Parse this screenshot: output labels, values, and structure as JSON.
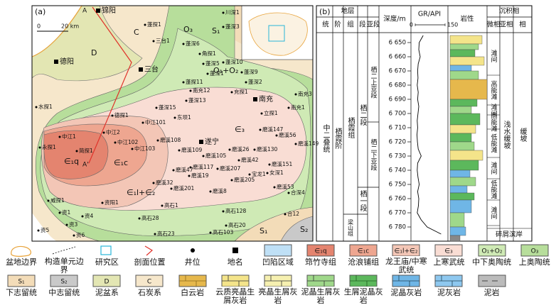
{
  "map": {
    "panel_label": "(a)",
    "scale_zero": "0",
    "scale_label": "20 km",
    "section_start": "A",
    "section_end": "A'",
    "places": [
      "锦阳",
      "德阳",
      "三台",
      "遂宁",
      "南充"
    ],
    "units": [
      "D",
      "C",
      "O₃",
      "S₁",
      "O₁+O₂",
      "∈₃",
      "∈₁c",
      "∈₁q",
      "∈₁l+∈₂",
      "S₁",
      "S₂"
    ],
    "wells": [
      "蓬探1",
      "川深1",
      "蓬深3",
      "三台1",
      "蓬深6",
      "角探1",
      "蓬深5",
      "蓬深10",
      "蓬深1",
      "蓬深9",
      "蓬深2",
      "蓬探11",
      "南充12",
      "充探1",
      "蓬深13",
      "蓬深15",
      "东坝1",
      "立探1",
      "南充3",
      "南充1",
      "德探1",
      "中江101",
      "中江2",
      "中江1",
      "中江102",
      "中江103",
      "磨溪108",
      "磨溪147",
      "磨溪56",
      "磨溪109",
      "磨溪26",
      "磨溪130",
      "磨溪149",
      "磨溪105",
      "水探1",
      "永探1",
      "简探1",
      "磨溪117",
      "磨溪42",
      "磨溪207",
      "磨溪47",
      "磨溪151",
      "宝龙1",
      "女深1",
      "磨溪19",
      "磨溪32",
      "磨溪201",
      "磨溪205",
      "磨溪8",
      "磨溪53",
      "资阳1",
      "威探1",
      "高石1",
      "高石28",
      "高石23",
      "高石103",
      "高石128",
      "高石20",
      "合12",
      "合深4",
      "资1",
      "资3",
      "资4",
      "资6",
      "资5"
    ]
  },
  "column": {
    "panel_label": "(b)",
    "header_strata": "地层",
    "header_series": "统",
    "header_stage": "阶",
    "header_formation": "组",
    "header_member": "段",
    "header_submember": "亚段",
    "header_depth": "深度/m",
    "header_gr": "GR/API",
    "header_lithology": "岩性",
    "header_facies": "沉积相",
    "header_microfacies": "微相",
    "header_subfacies": "亚相",
    "header_facies_type": "相",
    "series": "中二叠统",
    "stage": "栖霞阶",
    "formation": "栖霞组",
    "members": [
      "栖二段",
      "栖一段"
    ],
    "submembers": [
      "栖二上亚段",
      "栖二下亚段"
    ],
    "lower_formation": "梁山组",
    "microfacies": [
      "滩间",
      "高能滩",
      "滩间",
      "高能滩",
      "低能滩",
      "滩间",
      "低能滩",
      "滩间",
      "碎屑滨岸"
    ],
    "subfacies": "浅水缓坡",
    "facies": "缓坡",
    "depth_ylim": [
      6645,
      6785
    ],
    "depth_ticks": [
      {
        "value": 6650,
        "label": "6 650"
      },
      {
        "value": 6660,
        "label": "6 660"
      },
      {
        "value": 6670,
        "label": "6 670"
      },
      {
        "value": 6680,
        "label": "6 680"
      },
      {
        "value": 6690,
        "label": "6 690"
      },
      {
        "value": 6700,
        "label": "6 700"
      },
      {
        "value": 6710,
        "label": "6 710"
      },
      {
        "value": 6720,
        "label": "6 720"
      },
      {
        "value": 6730,
        "label": "6 730"
      },
      {
        "value": 6740,
        "label": "6 740"
      },
      {
        "value": 6750,
        "label": "6 750"
      },
      {
        "value": 6760,
        "label": "6 760"
      },
      {
        "value": 6770,
        "label": "6 770"
      },
      {
        "value": 6780,
        "label": "6 780"
      }
    ],
    "gr": {
      "xlim": [
        0,
        150
      ],
      "xticks": [
        0,
        150
      ],
      "depth": [
        6645,
        6650,
        6655,
        6660,
        6665,
        6670,
        6675,
        6680,
        6685,
        6690,
        6695,
        6700,
        6705,
        6710,
        6715,
        6720,
        6725,
        6730,
        6735,
        6740,
        6745,
        6750,
        6755,
        6760,
        6765,
        6770,
        6775,
        6780,
        6785
      ],
      "values": [
        40,
        20,
        18,
        25,
        15,
        12,
        14,
        10,
        15,
        12,
        18,
        14,
        10,
        12,
        9,
        11,
        15,
        30,
        12,
        10,
        14,
        20,
        12,
        18,
        16,
        10,
        30,
        60,
        130
      ]
    }
  },
  "legend": [
    {
      "label": "盆地边界"
    },
    {
      "label": "构造单元边界"
    },
    {
      "label": "研究区"
    },
    {
      "label": "剖面位置"
    },
    {
      "label": "井位"
    },
    {
      "label": "地名"
    },
    {
      "label": "凹陷区域"
    },
    {
      "label": "筇竹寺组",
      "symbol": "∈₁q"
    },
    {
      "label": "沧浪铺组",
      "symbol": "∈₁c"
    },
    {
      "label": "龙王庙/中寒武统",
      "symbol": "∈₁l+∈₂"
    },
    {
      "label": "上寒武统",
      "symbol": "∈₃"
    },
    {
      "label": "中下奥陶统",
      "symbol": "O₁+O₂"
    },
    {
      "label": "上奥陶统",
      "symbol": "O₃"
    },
    {
      "label": "下志留统",
      "symbol": "S₁"
    },
    {
      "label": "中志留统",
      "symbol": "S₂"
    },
    {
      "label": "泥盆系",
      "symbol": "D"
    },
    {
      "label": "石炭系",
      "symbol": "C"
    },
    {
      "label": "白云岩"
    },
    {
      "label": "云质亮晶生屑灰岩"
    },
    {
      "label": "亮晶生屑灰岩"
    },
    {
      "label": "泥晶生屑灰岩"
    },
    {
      "label": "生屑泥晶灰岩"
    },
    {
      "label": "泥晶灰岩"
    },
    {
      "label": "泥灰岩"
    },
    {
      "label": "泥岩"
    }
  ]
}
